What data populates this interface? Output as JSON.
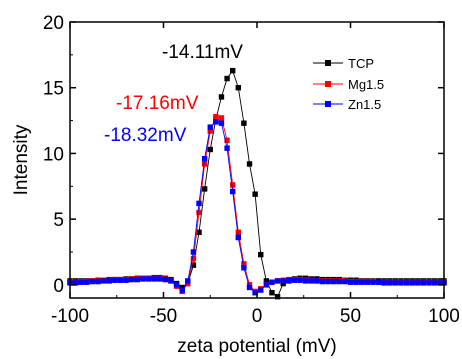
{
  "chart_data": {
    "type": "line",
    "xlabel": "zeta potential (mV)",
    "ylabel": "Intensity",
    "xlim": [
      -100,
      100
    ],
    "ylim": [
      -1,
      20
    ],
    "xticks": [
      -100,
      -50,
      0,
      50,
      100
    ],
    "yticks": [
      0,
      5,
      10,
      15,
      20
    ],
    "grid": false,
    "legend_position": "top-right",
    "series": [
      {
        "name": "TCP",
        "color": "#000000",
        "marker": "square",
        "x": [
          -100,
          -97,
          -94,
          -91,
          -88,
          -85,
          -82,
          -79,
          -76,
          -73,
          -70,
          -67,
          -64,
          -61,
          -58,
          -55,
          -52,
          -49,
          -46,
          -43,
          -40,
          -37,
          -34,
          -31,
          -28,
          -25,
          -22,
          -19,
          -16,
          -13,
          -10,
          -7,
          -4,
          -1,
          2,
          5,
          8,
          11,
          14,
          17,
          20,
          23,
          26,
          29,
          32,
          35,
          38,
          41,
          44,
          47,
          50,
          53,
          56,
          59,
          62,
          65,
          68,
          71,
          74,
          77,
          80,
          83,
          86,
          89,
          92,
          95,
          98,
          100
        ],
        "values": [
          0.3,
          0.3,
          0.3,
          0.3,
          0.3,
          0.35,
          0.35,
          0.4,
          0.4,
          0.4,
          0.45,
          0.45,
          0.5,
          0.5,
          0.5,
          0.55,
          0.55,
          0.5,
          0.4,
          0.1,
          -0.2,
          0.1,
          1.5,
          4.0,
          7.3,
          10.3,
          12.6,
          14.3,
          15.7,
          16.3,
          15.0,
          12.3,
          9.2,
          6.9,
          2.3,
          0.3,
          -0.6,
          -0.9,
          0.1,
          0.3,
          0.45,
          0.5,
          0.5,
          0.45,
          0.45,
          0.4,
          0.4,
          0.4,
          0.4,
          0.35,
          0.35,
          0.35,
          0.3,
          0.3,
          0.3,
          0.3,
          0.3,
          0.3,
          0.3,
          0.3,
          0.3,
          0.3,
          0.3,
          0.3,
          0.3,
          0.3,
          0.3,
          0.3
        ]
      },
      {
        "name": "Mg1.5",
        "color": "#ff0000",
        "marker": "square",
        "x": [
          -100,
          -97,
          -94,
          -91,
          -88,
          -85,
          -82,
          -79,
          -76,
          -73,
          -70,
          -67,
          -64,
          -61,
          -58,
          -55,
          -52,
          -49,
          -46,
          -43,
          -40,
          -37,
          -34,
          -31,
          -28,
          -25,
          -22,
          -19,
          -16,
          -13,
          -10,
          -7,
          -4,
          -1,
          2,
          5,
          8,
          11,
          14,
          17,
          20,
          23,
          26,
          29,
          32,
          35,
          38,
          41,
          44,
          47,
          50,
          53,
          56,
          59,
          62,
          65,
          68,
          71,
          74,
          77,
          80,
          83,
          86,
          89,
          92,
          95,
          98,
          100
        ],
        "values": [
          0.2,
          0.2,
          0.25,
          0.25,
          0.3,
          0.3,
          0.35,
          0.35,
          0.4,
          0.4,
          0.4,
          0.45,
          0.45,
          0.5,
          0.5,
          0.5,
          0.5,
          0.45,
          0.3,
          -0.1,
          -0.5,
          0.1,
          2.0,
          5.5,
          9.2,
          11.7,
          12.8,
          12.7,
          11.0,
          7.6,
          4.0,
          1.6,
          0.0,
          -0.5,
          -0.3,
          0.0,
          0.2,
          0.3,
          0.35,
          0.4,
          0.4,
          0.4,
          0.35,
          0.35,
          0.3,
          0.3,
          0.3,
          0.3,
          0.3,
          0.3,
          0.25,
          0.25,
          0.25,
          0.25,
          0.25,
          0.2,
          0.2,
          0.2,
          0.2,
          0.2,
          0.2,
          0.2,
          0.2,
          0.2,
          0.2,
          0.2,
          0.2,
          0.2
        ]
      },
      {
        "name": "Zn1.5",
        "color": "#0000ff",
        "marker": "square",
        "x": [
          -100,
          -97,
          -94,
          -91,
          -88,
          -85,
          -82,
          -79,
          -76,
          -73,
          -70,
          -67,
          -64,
          -61,
          -58,
          -55,
          -52,
          -49,
          -46,
          -43,
          -40,
          -37,
          -34,
          -31,
          -28,
          -25,
          -22,
          -19,
          -16,
          -13,
          -10,
          -7,
          -4,
          -1,
          2,
          5,
          8,
          11,
          14,
          17,
          20,
          23,
          26,
          29,
          32,
          35,
          38,
          41,
          44,
          47,
          50,
          53,
          56,
          59,
          62,
          65,
          68,
          71,
          74,
          77,
          80,
          83,
          86,
          89,
          92,
          95,
          98,
          100
        ],
        "values": [
          0.15,
          0.15,
          0.2,
          0.2,
          0.25,
          0.25,
          0.3,
          0.3,
          0.35,
          0.35,
          0.35,
          0.4,
          0.4,
          0.45,
          0.45,
          0.45,
          0.45,
          0.4,
          0.3,
          0.0,
          -0.4,
          0.3,
          2.5,
          6.2,
          9.6,
          12.0,
          12.4,
          12.3,
          10.4,
          7.1,
          3.6,
          1.3,
          -0.2,
          -0.6,
          -0.4,
          0.0,
          0.2,
          0.3,
          0.3,
          0.35,
          0.35,
          0.35,
          0.3,
          0.3,
          0.3,
          0.25,
          0.25,
          0.25,
          0.25,
          0.25,
          0.2,
          0.2,
          0.2,
          0.2,
          0.2,
          0.2,
          0.15,
          0.15,
          0.15,
          0.15,
          0.15,
          0.15,
          0.15,
          0.15,
          0.15,
          0.15,
          0.15,
          0.15
        ]
      }
    ],
    "annotations": [
      {
        "text": "-14.11mV",
        "color": "#000000"
      },
      {
        "text": "-17.16mV",
        "color": "#ff0000"
      },
      {
        "text": "-18.32mV",
        "color": "#0000ff"
      }
    ]
  }
}
